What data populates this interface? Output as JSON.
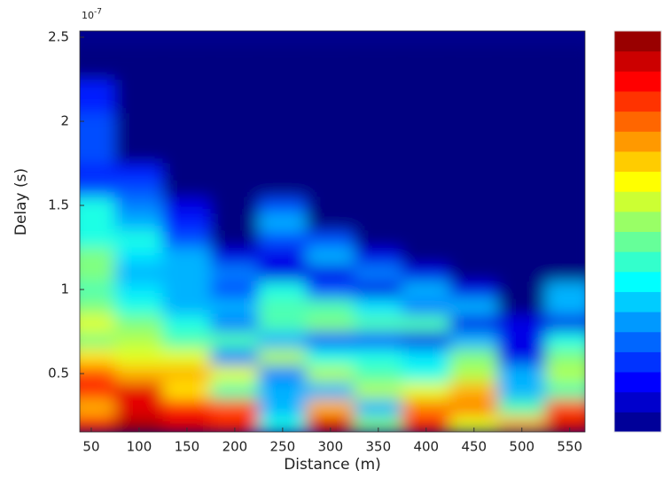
{
  "chart_data": {
    "type": "heatmap",
    "x_label": "Distance (m)",
    "y_label": "Delay (s)",
    "y_exponent_base": "10",
    "y_exponent_power": "-7",
    "colormap": "jet",
    "x": [
      50,
      100,
      150,
      200,
      250,
      300,
      350,
      400,
      450,
      500,
      550
    ],
    "y": [
      0.2,
      0.3,
      0.4,
      0.5,
      0.6,
      0.7,
      0.8,
      0.9,
      1.0,
      1.1,
      1.2,
      1.3,
      1.4,
      1.5,
      1.6,
      1.7,
      1.8,
      1.9,
      2.0,
      2.1,
      2.2,
      2.3,
      2.4
    ],
    "z": [
      [
        0.85,
        0.95,
        0.9,
        0.85,
        0.4,
        0.9,
        0.5,
        0.85,
        0.6,
        0.7,
        0.9
      ],
      [
        0.7,
        0.9,
        0.85,
        0.8,
        0.3,
        0.7,
        0.3,
        0.75,
        0.75,
        0.45,
        0.8
      ],
      [
        0.85,
        0.9,
        0.65,
        0.45,
        0.3,
        0.3,
        0.55,
        0.6,
        0.7,
        0.3,
        0.45
      ],
      [
        0.8,
        0.7,
        0.7,
        0.6,
        0.25,
        0.55,
        0.45,
        0.4,
        0.55,
        0.3,
        0.55
      ],
      [
        0.65,
        0.6,
        0.6,
        0.25,
        0.55,
        0.4,
        0.4,
        0.35,
        0.5,
        0.1,
        0.5
      ],
      [
        0.5,
        0.55,
        0.45,
        0.45,
        0.3,
        0.2,
        0.2,
        0.1,
        0.3,
        0.1,
        0.4
      ],
      [
        0.6,
        0.5,
        0.4,
        0.25,
        0.45,
        0.5,
        0.45,
        0.45,
        0.1,
        0.1,
        0.1
      ],
      [
        0.5,
        0.4,
        0.3,
        0.3,
        0.45,
        0.45,
        0.35,
        0.25,
        0.3,
        0,
        0.3
      ],
      [
        0.45,
        0.35,
        0.3,
        0.2,
        0.4,
        0.2,
        0.1,
        0.3,
        0.1,
        0,
        0.3
      ],
      [
        0.5,
        0.3,
        0.3,
        0.25,
        0.1,
        0.1,
        0.25,
        0.1,
        0,
        0,
        0
      ],
      [
        0.5,
        0.35,
        0.3,
        0.1,
        0.1,
        0.3,
        0.1,
        0,
        0,
        0,
        0
      ],
      [
        0.4,
        0.4,
        0.2,
        0,
        0.2,
        0.2,
        0,
        0,
        0,
        0,
        0
      ],
      [
        0.4,
        0.3,
        0.15,
        0,
        0.3,
        0,
        0,
        0,
        0,
        0,
        0
      ],
      [
        0.4,
        0.25,
        0.1,
        0,
        0.2,
        0,
        0,
        0,
        0,
        0,
        0
      ],
      [
        0.2,
        0.2,
        0,
        0,
        0,
        0,
        0,
        0,
        0,
        0,
        0
      ],
      [
        0.15,
        0.15,
        0,
        0,
        0,
        0,
        0,
        0,
        0,
        0,
        0
      ],
      [
        0.2,
        0,
        0,
        0,
        0,
        0,
        0,
        0,
        0,
        0,
        0
      ],
      [
        0.2,
        0,
        0,
        0,
        0,
        0,
        0,
        0,
        0,
        0,
        0
      ],
      [
        0.2,
        0,
        0,
        0,
        0,
        0,
        0,
        0,
        0,
        0,
        0
      ],
      [
        0.15,
        0,
        0,
        0,
        0,
        0,
        0,
        0,
        0,
        0,
        0
      ],
      [
        0.15,
        0,
        0,
        0,
        0,
        0,
        0,
        0,
        0,
        0,
        0
      ],
      [
        0,
        0,
        0,
        0,
        0,
        0,
        0,
        0,
        0,
        0,
        0
      ],
      [
        0,
        0,
        0,
        0,
        0,
        0,
        0,
        0,
        0,
        0,
        0
      ]
    ],
    "zlim": [
      0,
      1
    ],
    "xlim": [
      38,
      566
    ],
    "ylim": [
      0.153,
      2.537
    ],
    "xticks": [
      50,
      100,
      150,
      200,
      250,
      300,
      350,
      400,
      450,
      500,
      550
    ],
    "yticks": [
      0.5,
      1,
      1.5,
      2,
      2.5
    ]
  }
}
